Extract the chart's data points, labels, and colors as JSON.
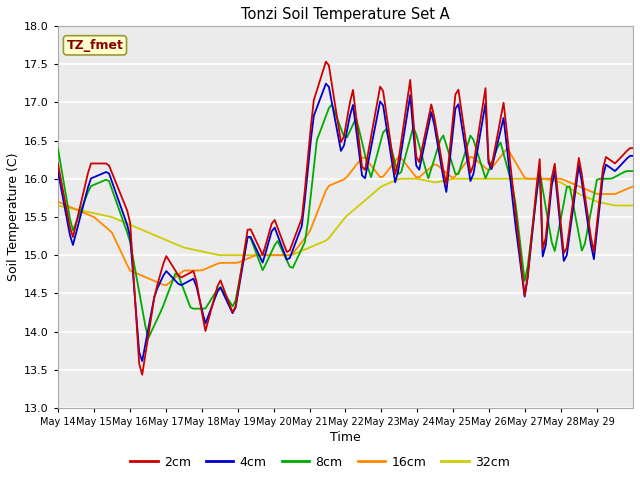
{
  "title": "Tonzi Soil Temperature Set A",
  "xlabel": "Time",
  "ylabel": "Soil Temperature (C)",
  "ylim": [
    13.0,
    18.0
  ],
  "yticks": [
    13.0,
    13.5,
    14.0,
    14.5,
    15.0,
    15.5,
    16.0,
    16.5,
    17.0,
    17.5,
    18.0
  ],
  "xtick_labels": [
    "May 14",
    "May 15",
    "May 16",
    "May 17",
    "May 18",
    "May 19",
    "May 20",
    "May 21",
    "May 22",
    "May 23",
    "May 24",
    "May 25",
    "May 26",
    "May 27",
    "May 28",
    "May 29"
  ],
  "series_colors": [
    "#cc0000",
    "#0000cc",
    "#00aa00",
    "#ff8800",
    "#cccc00"
  ],
  "series_labels": [
    "2cm",
    "4cm",
    "8cm",
    "16cm",
    "32cm"
  ],
  "legend_label": "TZ_fmet",
  "fig_facecolor": "#ffffff",
  "plot_facecolor": "#ebebeb",
  "grid_color": "#ffffff",
  "annotation_box_color": "#ffffcc",
  "annotation_text_color": "#880000",
  "annotation_box_edge": "#999933"
}
